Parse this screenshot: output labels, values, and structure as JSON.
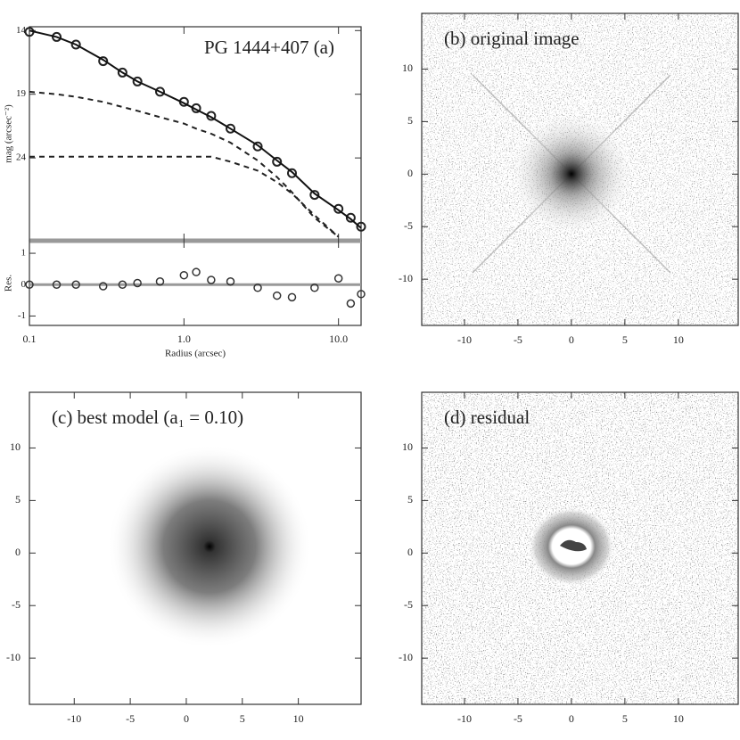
{
  "chart_data": [
    {
      "type": "profile",
      "title": "PG 1444+407 (a)",
      "xlabel": "Radius (arcsec)",
      "ylabel": "mag (arcsec⁻²)",
      "log_x": true,
      "xlim": [
        0.1,
        14
      ],
      "xticks": [
        0.1,
        {
          "value": 1,
          "label": "1.0"
        },
        {
          "value": 10,
          "label": "10.0"
        }
      ],
      "ylim": [
        30.5,
        13.7
      ],
      "yticks": [
        14,
        19,
        24
      ],
      "x": [
        0.1,
        0.15,
        0.2,
        0.3,
        0.4,
        0.5,
        0.7,
        1.0,
        1.2,
        1.5,
        2,
        3,
        4,
        5,
        7,
        10,
        12,
        14
      ],
      "series": [
        {
          "style": "markers",
          "color": "#222222",
          "values": [
            14.1,
            14.5,
            15.1,
            16.4,
            17.3,
            18.0,
            18.8,
            19.6,
            20.1,
            20.7,
            21.7,
            23.1,
            24.3,
            25.2,
            26.9,
            28.0,
            28.7,
            29.4
          ]
        },
        {
          "style": "solid",
          "color": "#111111",
          "values": [
            14.0,
            14.5,
            15.1,
            16.3,
            17.3,
            18.0,
            18.8,
            19.7,
            20.2,
            20.8,
            21.7,
            23.0,
            24.2,
            25.1,
            26.8,
            28.1,
            28.8,
            29.5
          ]
        },
        {
          "style": "dashed",
          "color": "#222222",
          "values": [
            18.8,
            19.0,
            19.2,
            19.6,
            20.0,
            20.3,
            20.8,
            21.3,
            21.7,
            22.1,
            22.8,
            24.2,
            25.5,
            26.7,
            28.7,
            30.2,
            null,
            null
          ]
        },
        {
          "style": "dashed",
          "color": "#222222",
          "values": [
            23.9,
            23.9,
            23.9,
            23.9,
            23.9,
            23.9,
            23.9,
            23.9,
            23.9,
            23.9,
            24.3,
            25.0,
            25.9,
            26.8,
            28.5,
            30.2,
            null,
            null
          ]
        }
      ],
      "residual": {
        "ylabel": "Res.",
        "ylim": [
          -1.3,
          1.4
        ],
        "yticks": [
          -1,
          0,
          1
        ],
        "values": [
          0,
          0,
          0,
          -0.05,
          0,
          0.05,
          0.1,
          0.3,
          0.4,
          0.15,
          0.1,
          -0.1,
          -0.35,
          -0.4,
          -0.1,
          0.2,
          -0.6,
          -0.3
        ]
      }
    },
    {
      "type": "image",
      "title": "(b) original image",
      "xlim": [
        -14,
        15.6
      ],
      "ylim": [
        -14.4,
        15.3
      ],
      "xticks": [
        -10,
        -5,
        0,
        5,
        10
      ],
      "yticks": [
        -10,
        -5,
        0,
        5,
        10
      ]
    },
    {
      "type": "image",
      "title": "(c) best model (a₁ = 0.10)",
      "xlim": [
        -14,
        15.6
      ],
      "ylim": [
        -14.4,
        15.3
      ],
      "xticks": [
        -10,
        -5,
        0,
        5,
        10
      ],
      "yticks": [
        -10,
        -5,
        0,
        5,
        10
      ]
    },
    {
      "type": "image",
      "title": "(d) residual",
      "xlim": [
        -14,
        15.6
      ],
      "ylim": [
        -14.4,
        15.3
      ],
      "xticks": [
        -10,
        -5,
        0,
        5,
        10
      ],
      "yticks": [
        -10,
        -5,
        0,
        5,
        10
      ]
    }
  ]
}
